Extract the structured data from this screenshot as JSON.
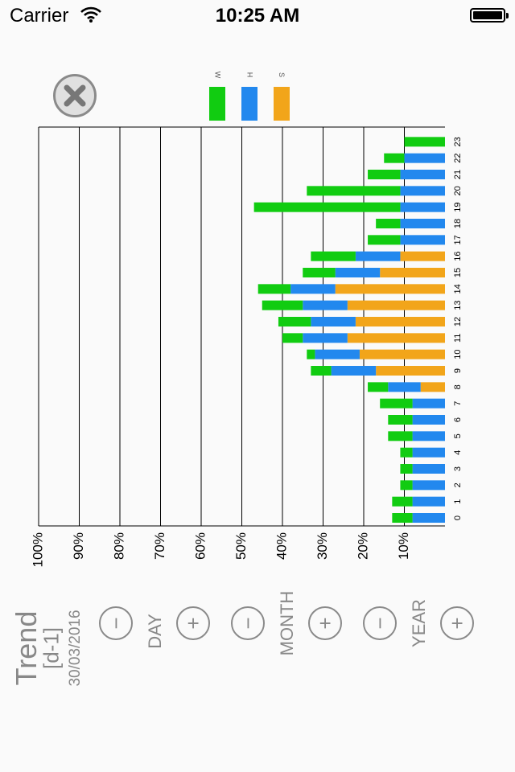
{
  "status_bar": {
    "carrier": "Carrier",
    "time": "10:25 AM"
  },
  "legend": [
    {
      "label": "W",
      "color": "#11cc11"
    },
    {
      "label": "H",
      "color": "#2288ee"
    },
    {
      "label": "S",
      "color": "#f2a51a"
    }
  ],
  "chart_data": {
    "type": "bar",
    "orientation": "horizontal-stacked",
    "categories": [
      "0",
      "1",
      "2",
      "3",
      "4",
      "5",
      "6",
      "7",
      "8",
      "9",
      "10",
      "11",
      "12",
      "13",
      "14",
      "15",
      "16",
      "17",
      "18",
      "19",
      "20",
      "21",
      "22",
      "23"
    ],
    "series": [
      {
        "name": "S",
        "color": "#f2a51a",
        "values": [
          0,
          0,
          0,
          0,
          0,
          0,
          0,
          0,
          6,
          17,
          21,
          24,
          22,
          24,
          27,
          16,
          11,
          0,
          0,
          0,
          0,
          0,
          0,
          0
        ]
      },
      {
        "name": "H",
        "color": "#2288ee",
        "values": [
          8,
          8,
          8,
          8,
          8,
          8,
          8,
          8,
          8,
          11,
          11,
          11,
          11,
          11,
          11,
          11,
          11,
          11,
          11,
          11,
          11,
          11,
          10,
          0
        ]
      },
      {
        "name": "W",
        "color": "#11cc11",
        "values": [
          5,
          5,
          3,
          3,
          3,
          6,
          6,
          8,
          5,
          5,
          2,
          5,
          8,
          10,
          8,
          8,
          11,
          8,
          6,
          36,
          23,
          8,
          5,
          10
        ]
      }
    ],
    "x_ticks": [
      "10%",
      "20%",
      "30%",
      "40%",
      "50%",
      "60%",
      "70%",
      "80%",
      "90%",
      "100%"
    ],
    "xlim": [
      0,
      100
    ]
  },
  "controls": {
    "title": "Trend",
    "period": "[d-1]",
    "date": "30/03/2016",
    "day_label": "DAY",
    "month_label": "MONTH",
    "year_label": "YEAR",
    "minus": "−",
    "plus": "+"
  }
}
